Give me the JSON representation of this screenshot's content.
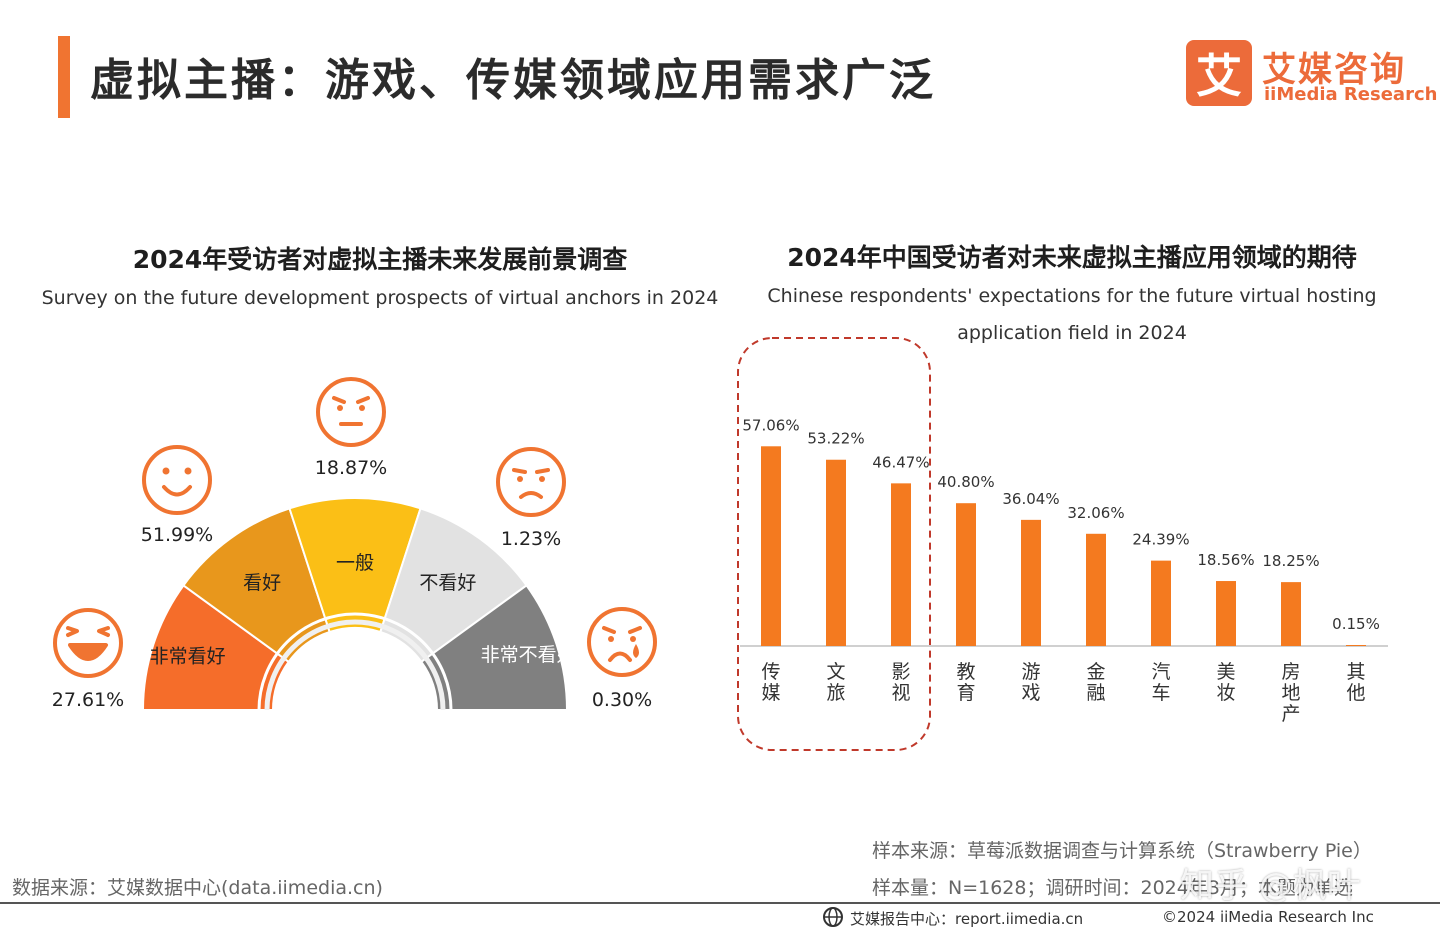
{
  "header": {
    "title": "虚拟主播：游戏、传媒领域应用需求广泛",
    "logo_mark": "艾",
    "logo_cn": "艾媒咨询",
    "logo_en": "iiMedia Research"
  },
  "colors": {
    "accent": "#f07431",
    "bar": "#f47a1f",
    "highlight_box": "#c0392b"
  },
  "chart_data": [
    {
      "type": "pie",
      "subtype": "semi-donut",
      "title": "2024年受访者对虚拟主播未来发展前景调查",
      "subtitle": "Survey on the future development prospects of virtual anchors in 2024",
      "categories": [
        "非常看好",
        "看好",
        "一般",
        "不看好",
        "非常不看好"
      ],
      "values": [
        27.61,
        51.99,
        18.87,
        1.23,
        0.3
      ],
      "value_labels": [
        "27.61%",
        "51.99%",
        "18.87%",
        "1.23%",
        "0.30%"
      ],
      "colors": [
        "#f56d2a",
        "#e8971c",
        "#fbbf16",
        "#e2e2e2",
        "#808080"
      ],
      "icons": [
        "laughing-face-icon",
        "smiling-face-icon",
        "neutral-face-icon",
        "frowning-face-icon",
        "crying-face-icon"
      ]
    },
    {
      "type": "bar",
      "title": "2024年中国受访者对未来虚拟主播应用领域的期待",
      "subtitle": "Chinese respondents' expectations for the future virtual hosting application field in 2024",
      "categories": [
        "传媒",
        "文旅",
        "影视",
        "教育",
        "游戏",
        "金融",
        "汽车",
        "美妆",
        "房地产",
        "其他"
      ],
      "values": [
        57.06,
        53.22,
        46.47,
        40.8,
        36.04,
        32.06,
        24.39,
        18.56,
        18.25,
        0.15
      ],
      "value_labels": [
        "57.06%",
        "53.22%",
        "46.47%",
        "40.80%",
        "36.04%",
        "32.06%",
        "24.39%",
        "18.56%",
        "18.25%",
        "0.15%"
      ],
      "highlighted": [
        "传媒",
        "文旅",
        "影视"
      ],
      "ylim": [
        0,
        60
      ]
    }
  ],
  "sources": {
    "sample_source": "样本来源：草莓派数据调查与计算系统（Strawberry Pie）",
    "sample_size": "样本量：N=1628；调研时间：2024年3月；本题为单选",
    "data_source": "数据来源：艾媒数据中心(data.iimedia.cn)"
  },
  "footer": {
    "report_center": "艾媒报告中心：report.iimedia.cn",
    "copyright": "©2024  iiMedia Research  Inc"
  },
  "watermark": "知乎 @枫叶"
}
